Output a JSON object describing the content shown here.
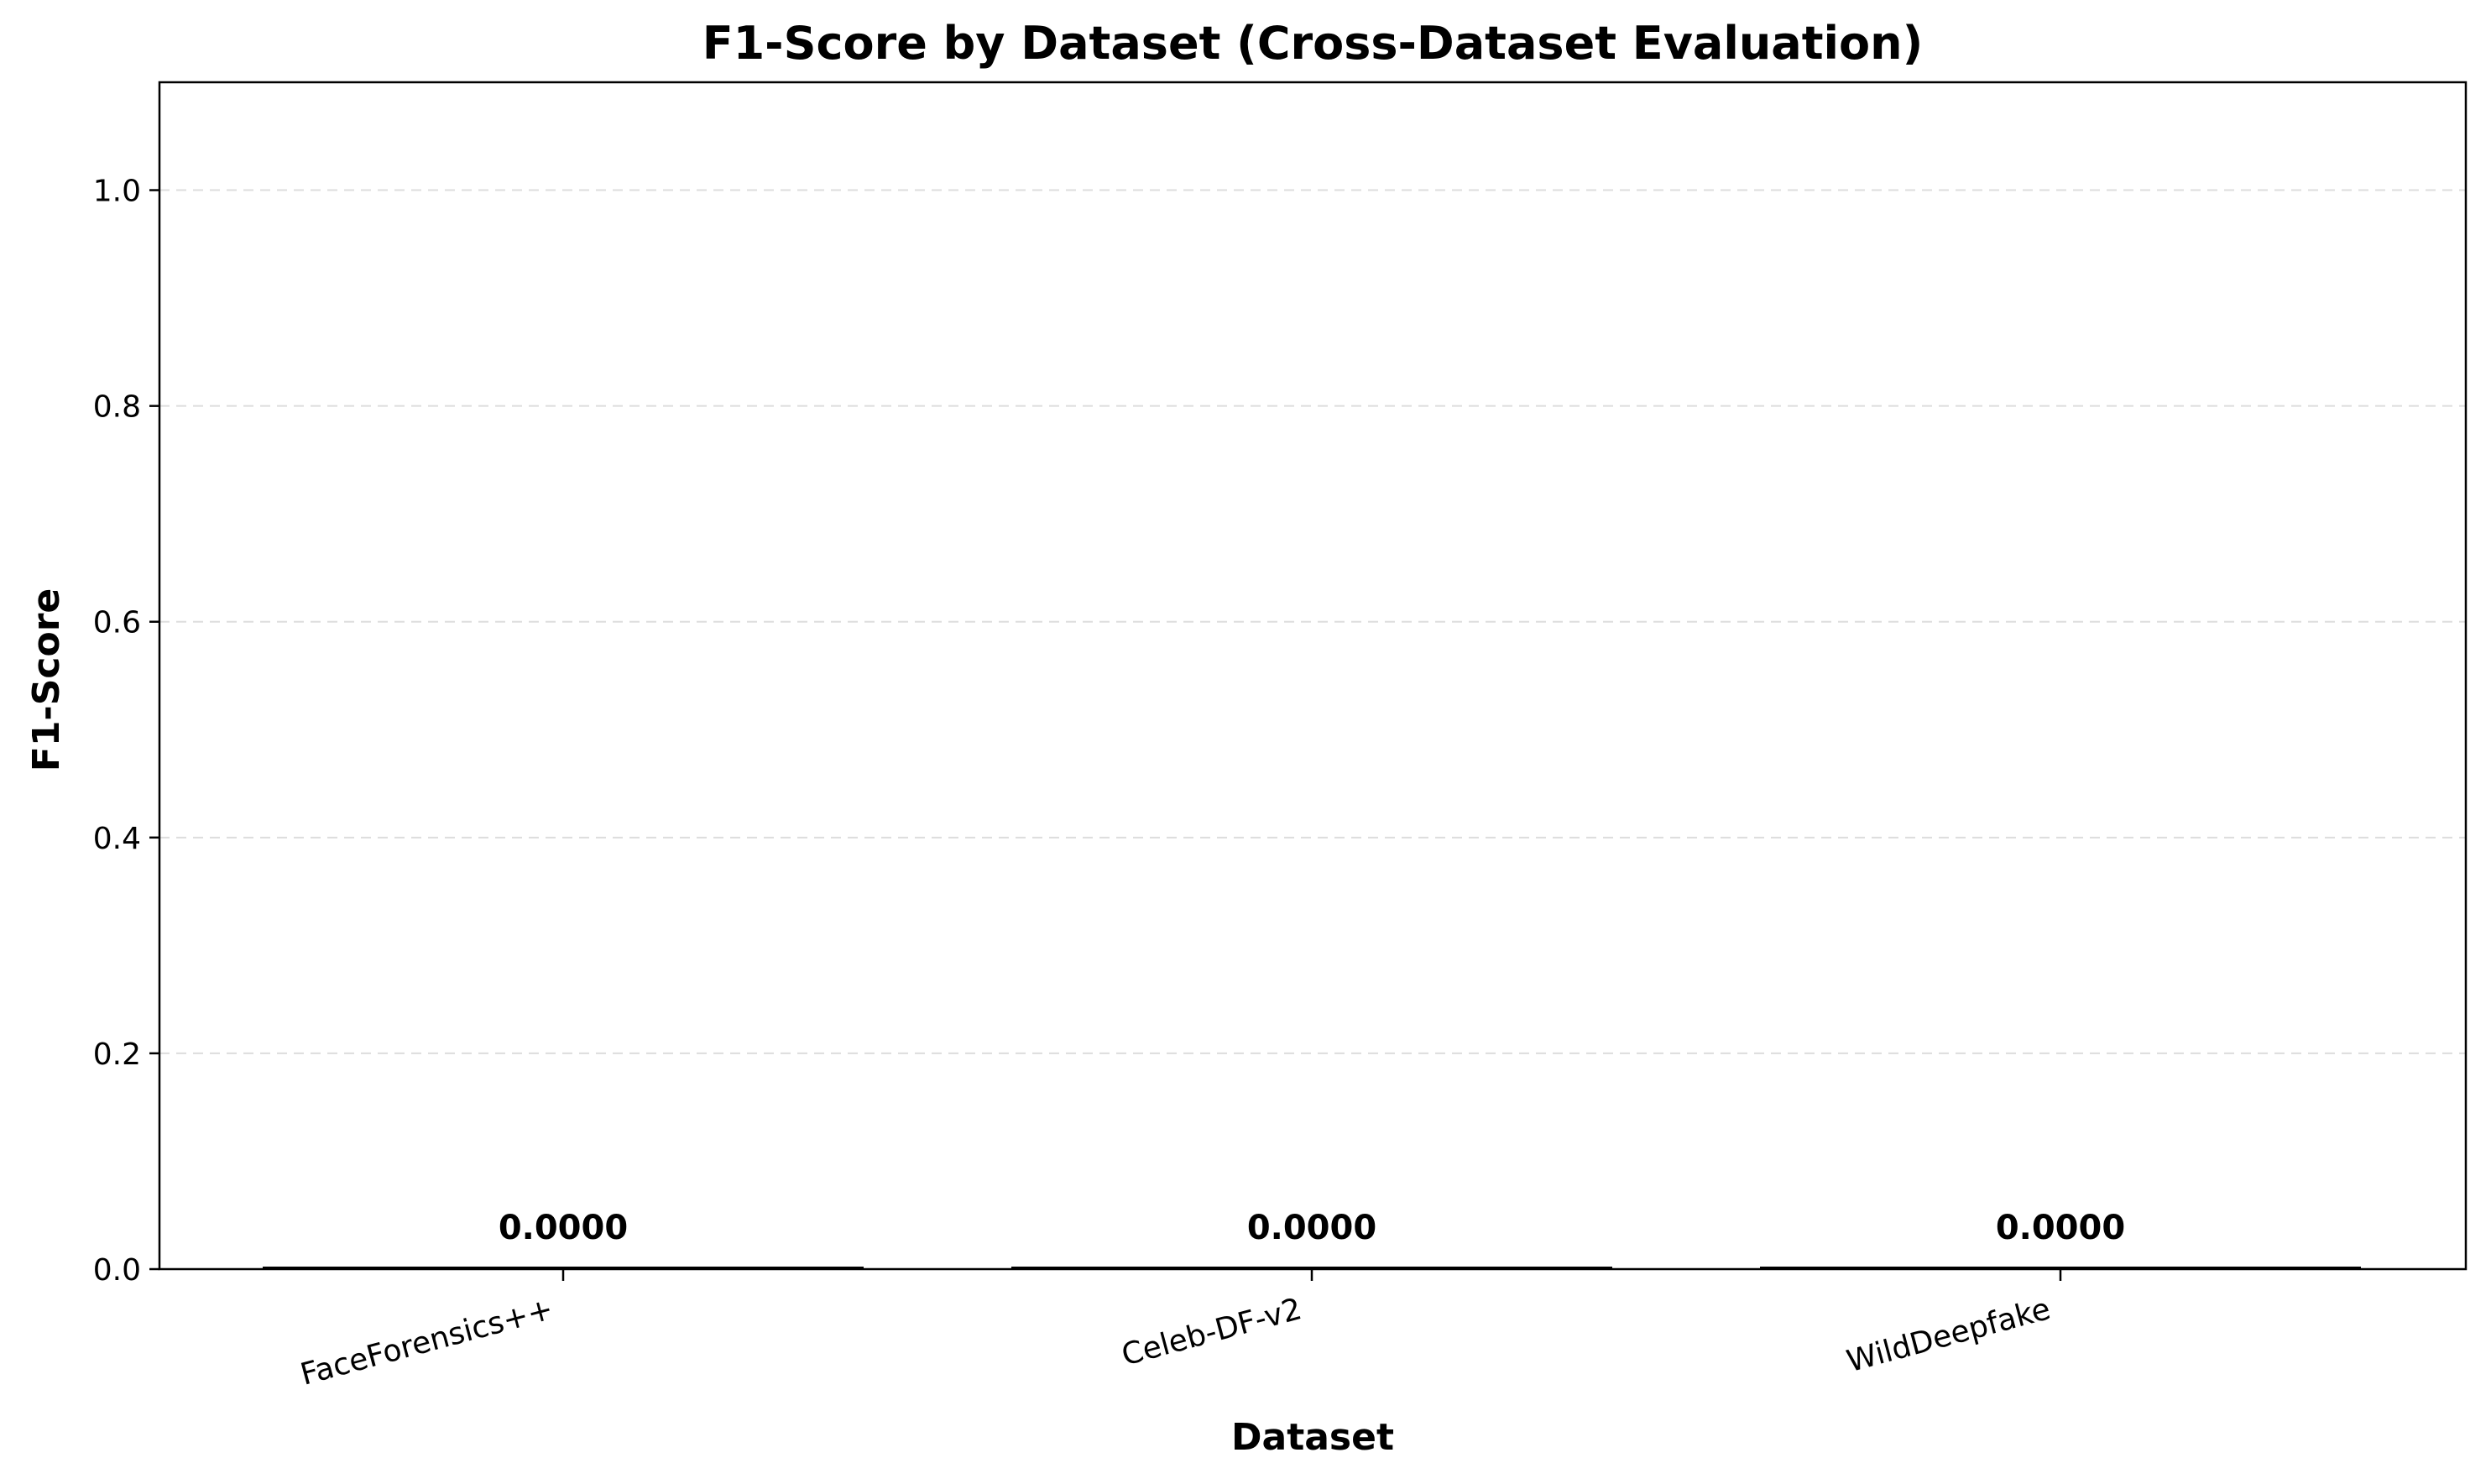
{
  "chart_data": {
    "type": "bar",
    "title": "F1-Score by Dataset (Cross-Dataset Evaluation)",
    "xlabel": "Dataset",
    "ylabel": "F1-Score",
    "categories": [
      "FaceForensics++",
      "Celeb-DF-v2",
      "WildDeepfake"
    ],
    "values": [
      0.0,
      0.0,
      0.0
    ],
    "value_labels": [
      "0.0000",
      "0.0000",
      "0.0000"
    ],
    "ylim": [
      0,
      1.1
    ],
    "yticks": [
      0.0,
      0.2,
      0.4,
      0.6,
      0.8,
      1.0
    ],
    "ytick_labels": [
      "0.0",
      "0.2",
      "0.4",
      "0.6",
      "0.8",
      "1.0"
    ],
    "grid": "y-dashed",
    "bar_color": "#4c72b0"
  }
}
